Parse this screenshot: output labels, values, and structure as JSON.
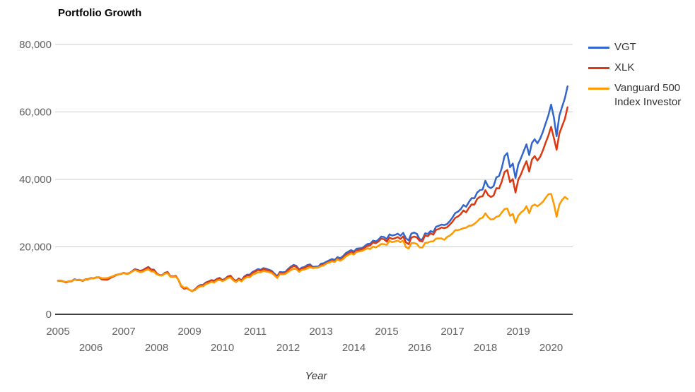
{
  "page": {
    "title": "Portfolio Growth"
  },
  "chart_data": {
    "type": "line",
    "title": "Portfolio Growth",
    "xlabel": "Year",
    "ylabel": "",
    "grid": "horizontal",
    "legend_position": "right",
    "xlim": [
      2005,
      2020.75
    ],
    "ylim": [
      0,
      80000
    ],
    "y_tick_values": [
      0,
      20000,
      40000,
      60000,
      80000
    ],
    "y_tick_labels": [
      "0",
      "20,000",
      "40,000",
      "60,000",
      "80,000"
    ],
    "x_tick_years": [
      2005,
      2006,
      2007,
      2008,
      2009,
      2010,
      2011,
      2012,
      2013,
      2014,
      2015,
      2016,
      2017,
      2018,
      2019,
      2020
    ],
    "x_start": 2005.0,
    "x_step_years": 0.08333333,
    "series": [
      {
        "name": "VGT",
        "color": "#3366cc",
        "values": [
          9950,
          10000,
          9750,
          9500,
          9800,
          9850,
          10400,
          10200,
          10250,
          10000,
          10400,
          10450,
          10750,
          10700,
          10950,
          11000,
          10400,
          10350,
          10300,
          10750,
          11150,
          11600,
          11850,
          12000,
          12300,
          12050,
          12200,
          12750,
          13350,
          13200,
          12900,
          13100,
          13650,
          14050,
          13300,
          13250,
          12200,
          11650,
          11600,
          12300,
          12550,
          11300,
          11200,
          11400,
          10200,
          8350,
          7650,
          7800,
          7300,
          6900,
          7400,
          8200,
          8700,
          8750,
          9450,
          9750,
          10150,
          9950,
          10500,
          10800,
          10150,
          10550,
          11250,
          11450,
          10450,
          9900,
          10650,
          10100,
          11200,
          11750,
          11750,
          12550,
          12950,
          13400,
          13200,
          13700,
          13500,
          13200,
          12900,
          12100,
          11250,
          12550,
          12450,
          12550,
          13450,
          14150,
          14650,
          14350,
          13300,
          13850,
          14050,
          14600,
          14800,
          14050,
          14150,
          14150,
          15000,
          15150,
          15600,
          16000,
          16400,
          16100,
          16950,
          16650,
          17200,
          18100,
          18600,
          19050,
          18600,
          19450,
          19550,
          19600,
          20250,
          20850,
          20950,
          21850,
          21600,
          22150,
          23050,
          22900,
          22300,
          23700,
          23350,
          23550,
          23900,
          23300,
          24150,
          22550,
          21950,
          23950,
          24250,
          23850,
          22250,
          22150,
          24000,
          23850,
          24700,
          24350,
          25950,
          26250,
          26600,
          26450,
          26750,
          27600,
          28700,
          30000,
          30450,
          31200,
          32400,
          31900,
          33300,
          34450,
          34400,
          36100,
          36800,
          37000,
          39600,
          37900,
          37400,
          38000,
          40600,
          41000,
          43400,
          46900,
          47800,
          43600,
          44700,
          40400,
          44400,
          46300,
          48400,
          50400,
          47200,
          50800,
          51900,
          50700,
          52100,
          54100,
          56600,
          59000,
          62200,
          58400,
          52800,
          58900,
          61500,
          64000,
          67600
        ]
      },
      {
        "name": "XLK",
        "color": "#dc3912",
        "values": [
          9900,
          9950,
          9700,
          9450,
          9750,
          9800,
          10300,
          10100,
          10150,
          9900,
          10300,
          10350,
          10700,
          10650,
          10900,
          10950,
          10350,
          10300,
          10250,
          10700,
          11100,
          11550,
          11800,
          11950,
          12250,
          12000,
          12150,
          12700,
          13250,
          13100,
          12800,
          13000,
          13550,
          13950,
          13250,
          13200,
          12150,
          11600,
          11550,
          12250,
          12500,
          11250,
          11150,
          11350,
          10150,
          8300,
          7600,
          7750,
          7250,
          6850,
          7350,
          8150,
          8600,
          8650,
          9350,
          9650,
          10050,
          9850,
          10400,
          10700,
          10050,
          10450,
          11150,
          11300,
          10350,
          9800,
          10500,
          9950,
          11050,
          11550,
          11550,
          12300,
          12700,
          13150,
          12950,
          13400,
          13200,
          12900,
          12600,
          11850,
          11000,
          12300,
          12200,
          12300,
          13150,
          13800,
          14300,
          14050,
          13000,
          13550,
          13750,
          14250,
          14450,
          13750,
          13850,
          13850,
          14600,
          14750,
          15150,
          15550,
          15950,
          15600,
          16400,
          16100,
          16600,
          17550,
          18050,
          18500,
          18100,
          18950,
          19100,
          19150,
          19800,
          20350,
          20450,
          21300,
          21100,
          21600,
          22450,
          22250,
          21550,
          22750,
          22350,
          22550,
          22900,
          22350,
          23100,
          21350,
          20800,
          22750,
          23050,
          22800,
          21750,
          21600,
          23400,
          23150,
          24050,
          23600,
          25050,
          25300,
          25750,
          25550,
          25800,
          26600,
          27450,
          28600,
          29000,
          29700,
          30800,
          30250,
          31550,
          32600,
          32550,
          34200,
          34850,
          35000,
          36800,
          35400,
          34800,
          35200,
          37400,
          37300,
          39400,
          42200,
          42800,
          39200,
          40100,
          36100,
          39900,
          41500,
          43600,
          45400,
          42300,
          45900,
          46900,
          45600,
          46700,
          48600,
          50900,
          53000,
          55600,
          52300,
          48800,
          53600,
          55800,
          57900,
          61400
        ]
      },
      {
        "name": "Vanguard 500 Index Investor",
        "color": "#ff9900",
        "values": [
          9850,
          9950,
          9750,
          9600,
          9850,
          9900,
          10250,
          10150,
          10200,
          10000,
          10350,
          10400,
          10650,
          10700,
          10850,
          11000,
          10700,
          10700,
          10750,
          11000,
          11300,
          11650,
          11850,
          12000,
          12200,
          11950,
          12100,
          12600,
          13050,
          12850,
          12450,
          12650,
          13100,
          13300,
          12750,
          12650,
          11900,
          11550,
          11500,
          12050,
          12200,
          11150,
          11050,
          11200,
          10200,
          8500,
          7900,
          8000,
          7300,
          6900,
          7150,
          7850,
          8300,
          8300,
          8950,
          9250,
          9600,
          9400,
          10000,
          10200,
          9850,
          10150,
          10750,
          10900,
          10050,
          9550,
          10200,
          9750,
          10600,
          11000,
          11000,
          11750,
          12050,
          12450,
          12450,
          12850,
          12700,
          12500,
          12250,
          11550,
          10750,
          11900,
          11850,
          12000,
          12550,
          13100,
          13500,
          13400,
          12600,
          13150,
          13300,
          13600,
          13950,
          13700,
          13800,
          13900,
          14300,
          14500,
          15050,
          15350,
          15700,
          15500,
          16300,
          15850,
          16350,
          17100,
          17600,
          18050,
          17700,
          18500,
          18650,
          18800,
          19200,
          19600,
          19350,
          20100,
          19850,
          20300,
          20850,
          20800,
          20600,
          21750,
          21400,
          21600,
          21850,
          21400,
          21900,
          19950,
          19500,
          21100,
          21150,
          20850,
          19850,
          19800,
          21150,
          21250,
          21600,
          21650,
          22450,
          22500,
          22500,
          22100,
          22900,
          23350,
          24000,
          24950,
          24950,
          25200,
          25550,
          25700,
          26250,
          26300,
          26850,
          27500,
          28350,
          28650,
          29950,
          28850,
          28100,
          28250,
          28900,
          29100,
          30200,
          31200,
          31350,
          29200,
          29800,
          27100,
          29250,
          30200,
          30800,
          32050,
          30000,
          32100,
          32550,
          32050,
          32650,
          33350,
          34550,
          35600,
          35700,
          32800,
          28900,
          32500,
          33900,
          34800,
          34200
        ]
      }
    ]
  },
  "legend": {
    "items": [
      {
        "label": "VGT",
        "color": "#3366cc"
      },
      {
        "label": "XLK",
        "color": "#dc3912"
      },
      {
        "label": "Vanguard 500 Index Investor",
        "color": "#ff9900"
      }
    ]
  },
  "colors": {
    "gridline": "#cccccc",
    "axis_line": "#424242",
    "tick_text": "#616161"
  }
}
